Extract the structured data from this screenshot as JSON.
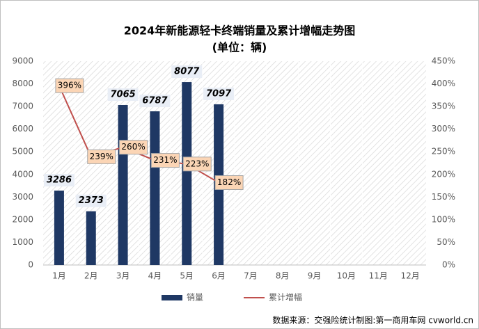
{
  "chart_data": {
    "type": "bar",
    "title": "2024年新能源轻卡终端销量及累计增幅走势图",
    "subtitle": "(单位：辆)",
    "categories": [
      "1月",
      "2月",
      "3月",
      "4月",
      "5月",
      "6月",
      "7月",
      "8月",
      "9月",
      "10月",
      "11月",
      "12月"
    ],
    "series": [
      {
        "name": "销量",
        "type": "bar",
        "color": "#1f3864",
        "values": [
          3286,
          2373,
          7065,
          6787,
          8077,
          7097,
          null,
          null,
          null,
          null,
          null,
          null
        ]
      },
      {
        "name": "累计增幅",
        "type": "line",
        "axis": "y2",
        "color": "#c0504d",
        "values": [
          396,
          239,
          260,
          231,
          223,
          182,
          null,
          null,
          null,
          null,
          null,
          null
        ],
        "value_labels": [
          "396%",
          "239%",
          "260%",
          "231%",
          "223%",
          "182%",
          null,
          null,
          null,
          null,
          null,
          null
        ]
      }
    ],
    "ylim": [
      0,
      9000
    ],
    "yticks": [
      0,
      1000,
      2000,
      3000,
      4000,
      5000,
      6000,
      7000,
      8000,
      9000
    ],
    "y2lim": [
      0,
      450
    ],
    "y2ticks": [
      {
        "value": 0,
        "label": "0%"
      },
      {
        "value": 50,
        "label": "50%"
      },
      {
        "value": 100,
        "label": "100%"
      },
      {
        "value": 150,
        "label": "150%"
      },
      {
        "value": 200,
        "label": "200%"
      },
      {
        "value": 250,
        "label": "250%"
      },
      {
        "value": 300,
        "label": "300%"
      },
      {
        "value": 350,
        "label": "350%"
      },
      {
        "value": 400,
        "label": "400%"
      },
      {
        "value": 450,
        "label": "450%"
      }
    ],
    "source": "数据来源：交强险统计制图:第一商用车网 cvworld.cn"
  }
}
